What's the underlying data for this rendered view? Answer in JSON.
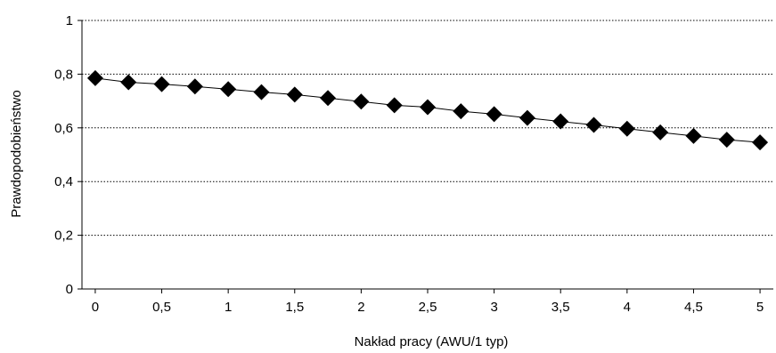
{
  "chart_data": {
    "type": "line",
    "title": "",
    "xlabel": "Nakład pracy (AWU/1 typ)",
    "ylabel": "Prawdopodobieństwo",
    "xlim": [
      -0.1,
      5.1
    ],
    "ylim": [
      0,
      1
    ],
    "x_ticks": [
      "0",
      "0,5",
      "1",
      "1,5",
      "2",
      "2,5",
      "3",
      "3,5",
      "4",
      "4,5",
      "5"
    ],
    "y_ticks": [
      "0",
      "0,2",
      "0,4",
      "0,6",
      "0,8",
      "1"
    ],
    "grid": "horizontal-dotted",
    "marker": "diamond",
    "series": [
      {
        "x": [
          0,
          0.25,
          0.5,
          0.75,
          1,
          1.25,
          1.5,
          1.75,
          2,
          2.25,
          2.5,
          2.75,
          3,
          3.25,
          3.5,
          3.75,
          4,
          4.25,
          4.5,
          4.75,
          5
        ],
        "values": [
          0.785,
          0.77,
          0.763,
          0.754,
          0.744,
          0.733,
          0.724,
          0.711,
          0.698,
          0.684,
          0.677,
          0.662,
          0.651,
          0.637,
          0.624,
          0.611,
          0.597,
          0.583,
          0.57,
          0.556,
          0.546
        ]
      }
    ]
  }
}
